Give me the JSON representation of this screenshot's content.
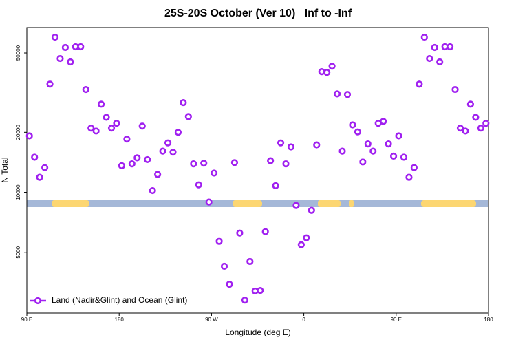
{
  "chart_data": {
    "type": "scatter",
    "title": "25S-20S October (Ver 10)   Inf to -Inf",
    "xlabel": "Longitude (deg E)",
    "ylabel": "N Total",
    "x": [
      92.5,
      97.5,
      102.5,
      107.5,
      112.5,
      117.5,
      122.5,
      127.5,
      132.5,
      137.5,
      142.5,
      147.5,
      152.5,
      157.5,
      162.5,
      167.5,
      172.5,
      177.5,
      182.5,
      187.5,
      192.5,
      197.5,
      202.5,
      207.5,
      212.5,
      217.5,
      222.5,
      227.5,
      232.5,
      237.5,
      242.5,
      247.5,
      252.5,
      257.5,
      262.5,
      267.5,
      272.5,
      277.5,
      282.5,
      287.5,
      292.5,
      297.5,
      302.5,
      307.5,
      312.5,
      317.5,
      322.5,
      327.5,
      332.5,
      337.5,
      342.5,
      347.5,
      352.5,
      357.5,
      362.5,
      367.5,
      372.5,
      377.5,
      382.5,
      387.5,
      392.5,
      397.5,
      402.5,
      407.5,
      412.5,
      417.5,
      422.5,
      427.5,
      432.5,
      437.5,
      442.5,
      447.5,
      452.5,
      457.5,
      462.5,
      467.5,
      472.5,
      477.5,
      482.5,
      487.5,
      492.5,
      497.5,
      502.5,
      507.5,
      512.5,
      517.5,
      522.5,
      527.5,
      532.5,
      537.5
    ],
    "series": [
      {
        "name": "Land (Nadir&Glint) and Ocean (Glint)",
        "color": "#a020f0",
        "values": [
          19200,
          15000,
          11900,
          13300,
          34900,
          60000,
          46900,
          53300,
          45100,
          53700,
          53700,
          32800,
          21000,
          20300,
          27700,
          23800,
          21000,
          22200,
          13600,
          18500,
          13900,
          14900,
          21500,
          14600,
          10200,
          12300,
          16100,
          17700,
          15900,
          20000,
          28200,
          24000,
          13900,
          10900,
          14000,
          8940,
          12500,
          5680,
          4260,
          3460,
          14100,
          6250,
          2880,
          4500,
          3200,
          3220,
          6350,
          14400,
          10800,
          17700,
          13900,
          16900,
          8590,
          5460,
          5910,
          8120,
          17300,
          40300,
          40000,
          42900,
          31200,
          16100,
          31000,
          21800,
          20100,
          14200,
          17500,
          16100,
          22200,
          22700,
          17500,
          15200,
          19200,
          15000,
          11900,
          13300,
          34900,
          60000,
          46900,
          53300,
          45100,
          53700,
          53700,
          32800,
          21000,
          20300,
          27700,
          23800,
          21000,
          22200
        ]
      }
    ],
    "xlim": [
      90,
      540
    ],
    "xticks": [
      {
        "value": 90,
        "label": "90 E"
      },
      180,
      {
        "value": 270,
        "label": "90 W"
      },
      {
        "value": 360,
        "label": "0"
      },
      {
        "value": 450,
        "label": "90 E"
      },
      {
        "value": 540,
        "label": "180"
      }
    ],
    "ylim": [
      2480,
      67100
    ],
    "yticks": [
      5000,
      10000,
      20000,
      50000
    ],
    "log_y": true,
    "legend": "lower left"
  }
}
